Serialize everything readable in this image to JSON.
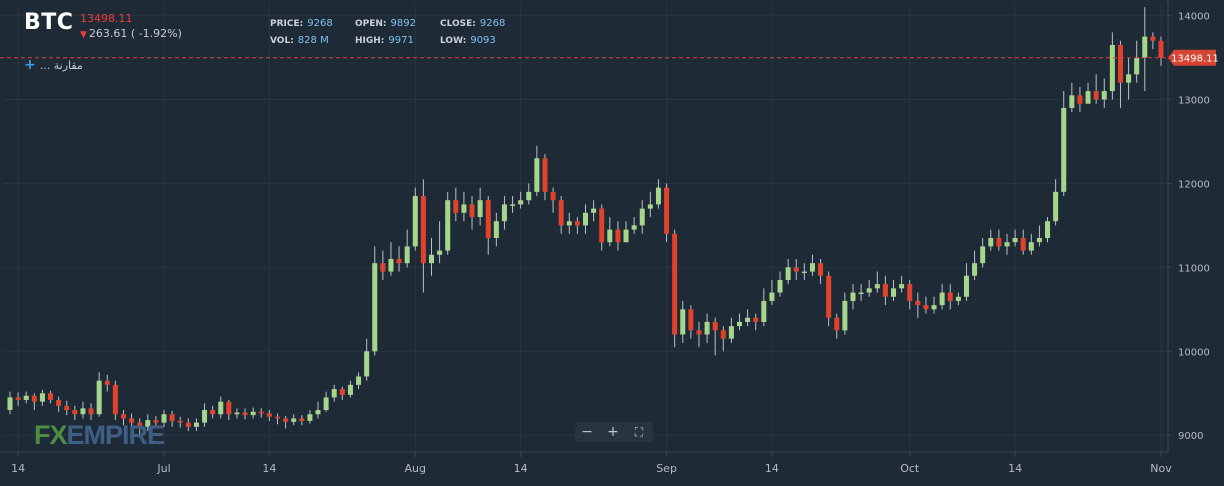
{
  "header": {
    "symbol": "BTC",
    "last_price": "13498.11",
    "change_text": "263.61 ( -1.92%)",
    "compare_label": "... مقارنة"
  },
  "stats": {
    "price_label": "PRICE:",
    "price": "9268",
    "open_label": "OPEN:",
    "open": "9892",
    "close_label": "CLOSE:",
    "close": "9268",
    "vol_label": "VOL:",
    "vol": "828 M",
    "high_label": "HIGH:",
    "high": "9971",
    "low_label": "LOW:",
    "low": "9093"
  },
  "logo": {
    "fx": "FX",
    "empire": "EMPIRE"
  },
  "zoom": {
    "minus": "−",
    "plus": "+",
    "fullscreen": "⛶"
  },
  "colors": {
    "background": "#1e2a35",
    "up": "#a6d68c",
    "down": "#e0422c",
    "grid": "#29353f",
    "axis_text": "#b4bcc4",
    "last_price_line": "#d64533"
  },
  "chart_data": {
    "type": "candlestick",
    "ylim": [
      8800,
      14150
    ],
    "yticks": [
      9000,
      10000,
      11000,
      12000,
      13000,
      14000
    ],
    "xticks": [
      {
        "label": "14",
        "index": 1
      },
      {
        "label": "Jul",
        "index": 19
      },
      {
        "label": "14",
        "index": 32
      },
      {
        "label": "Aug",
        "index": 50
      },
      {
        "label": "14",
        "index": 63
      },
      {
        "label": "Sep",
        "index": 81
      },
      {
        "label": "14",
        "index": 94
      },
      {
        "label": "Oct",
        "index": 111
      },
      {
        "label": "14",
        "index": 124
      },
      {
        "label": "Nov",
        "index": 142
      }
    ],
    "last_price": 13498.11,
    "last_price_label": "13498.11",
    "candles": [
      [
        9300,
        9450,
        9520,
        9250
      ],
      [
        9450,
        9420,
        9510,
        9350
      ],
      [
        9420,
        9470,
        9520,
        9380
      ],
      [
        9470,
        9400,
        9500,
        9300
      ],
      [
        9400,
        9500,
        9540,
        9350
      ],
      [
        9500,
        9420,
        9530,
        9380
      ],
      [
        9420,
        9350,
        9460,
        9280
      ],
      [
        9350,
        9300,
        9410,
        9240
      ],
      [
        9300,
        9250,
        9350,
        9180
      ],
      [
        9250,
        9320,
        9400,
        9200
      ],
      [
        9320,
        9250,
        9380,
        9180
      ],
      [
        9250,
        9650,
        9750,
        9220
      ],
      [
        9650,
        9600,
        9720,
        9520
      ],
      [
        9600,
        9250,
        9650,
        9180
      ],
      [
        9250,
        9200,
        9300,
        9120
      ],
      [
        9200,
        9150,
        9260,
        9080
      ],
      [
        9150,
        9100,
        9200,
        9000
      ],
      [
        9100,
        9180,
        9250,
        9050
      ],
      [
        9180,
        9150,
        9230,
        9080
      ],
      [
        9150,
        9250,
        9300,
        9100
      ],
      [
        9250,
        9170,
        9290,
        9100
      ],
      [
        9170,
        9150,
        9220,
        9090
      ],
      [
        9150,
        9100,
        9200,
        9050
      ],
      [
        9100,
        9150,
        9200,
        9050
      ],
      [
        9150,
        9300,
        9380,
        9100
      ],
      [
        9300,
        9250,
        9350,
        9200
      ],
      [
        9250,
        9400,
        9460,
        9200
      ],
      [
        9400,
        9250,
        9420,
        9180
      ],
      [
        9250,
        9270,
        9320,
        9200
      ],
      [
        9270,
        9240,
        9320,
        9190
      ],
      [
        9240,
        9280,
        9330,
        9200
      ],
      [
        9280,
        9260,
        9320,
        9210
      ],
      [
        9260,
        9220,
        9300,
        9170
      ],
      [
        9220,
        9200,
        9260,
        9130
      ],
      [
        9200,
        9160,
        9230,
        9080
      ],
      [
        9160,
        9200,
        9250,
        9120
      ],
      [
        9200,
        9170,
        9240,
        9120
      ],
      [
        9170,
        9250,
        9300,
        9140
      ],
      [
        9250,
        9300,
        9400,
        9200
      ],
      [
        9300,
        9450,
        9520,
        9280
      ],
      [
        9450,
        9550,
        9600,
        9400
      ],
      [
        9550,
        9480,
        9580,
        9420
      ],
      [
        9480,
        9600,
        9650,
        9450
      ],
      [
        9600,
        9700,
        9750,
        9550
      ],
      [
        9700,
        10000,
        10150,
        9650
      ],
      [
        10000,
        11050,
        11250,
        9950
      ],
      [
        11050,
        10950,
        11200,
        10850
      ],
      [
        10950,
        11100,
        11300,
        10900
      ],
      [
        11100,
        11050,
        11250,
        10950
      ],
      [
        11050,
        11250,
        11450,
        11000
      ],
      [
        11250,
        11850,
        11950,
        11200
      ],
      [
        11850,
        11050,
        12050,
        10700
      ],
      [
        11050,
        11150,
        11350,
        10900
      ],
      [
        11150,
        11200,
        11550,
        11050
      ],
      [
        11200,
        11800,
        11900,
        11150
      ],
      [
        11800,
        11650,
        11950,
        11550
      ],
      [
        11650,
        11750,
        11900,
        11550
      ],
      [
        11750,
        11600,
        11850,
        11450
      ],
      [
        11600,
        11800,
        11950,
        11500
      ],
      [
        11800,
        11350,
        11850,
        11150
      ],
      [
        11350,
        11550,
        11650,
        11250
      ],
      [
        11550,
        11750,
        11850,
        11450
      ],
      [
        11750,
        11750,
        11850,
        11650
      ],
      [
        11750,
        11800,
        11900,
        11700
      ],
      [
        11800,
        11900,
        12000,
        11750
      ],
      [
        11900,
        12300,
        12450,
        11850
      ],
      [
        12300,
        11900,
        12350,
        11800
      ],
      [
        11900,
        11800,
        11950,
        11650
      ],
      [
        11800,
        11500,
        11850,
        11400
      ],
      [
        11500,
        11550,
        11650,
        11400
      ],
      [
        11550,
        11500,
        11600,
        11400
      ],
      [
        11500,
        11650,
        11750,
        11400
      ],
      [
        11650,
        11700,
        11800,
        11550
      ],
      [
        11700,
        11300,
        11750,
        11200
      ],
      [
        11300,
        11450,
        11600,
        11250
      ],
      [
        11450,
        11300,
        11550,
        11200
      ],
      [
        11300,
        11450,
        11550,
        11300
      ],
      [
        11450,
        11500,
        11600,
        11400
      ],
      [
        11500,
        11700,
        11800,
        11400
      ],
      [
        11700,
        11750,
        11900,
        11600
      ],
      [
        11750,
        11950,
        12050,
        11700
      ],
      [
        11950,
        11400,
        12000,
        11300
      ],
      [
        11400,
        10200,
        11450,
        10050
      ],
      [
        10200,
        10500,
        10600,
        10100
      ],
      [
        10500,
        10250,
        10550,
        10150
      ],
      [
        10250,
        10200,
        10350,
        10050
      ],
      [
        10200,
        10350,
        10450,
        10100
      ],
      [
        10350,
        10250,
        10400,
        9950
      ],
      [
        10250,
        10150,
        10300,
        10000
      ],
      [
        10150,
        10300,
        10400,
        10100
      ],
      [
        10300,
        10350,
        10450,
        10250
      ],
      [
        10350,
        10400,
        10500,
        10300
      ],
      [
        10400,
        10350,
        10450,
        10250
      ],
      [
        10350,
        10600,
        10750,
        10300
      ],
      [
        10600,
        10700,
        10850,
        10550
      ],
      [
        10700,
        10850,
        10950,
        10650
      ],
      [
        10850,
        11000,
        11100,
        10800
      ],
      [
        11000,
        10950,
        11100,
        10850
      ],
      [
        10950,
        10950,
        11050,
        10850
      ],
      [
        10950,
        11050,
        11150,
        10900
      ],
      [
        11050,
        10900,
        11100,
        10800
      ],
      [
        10900,
        10400,
        10950,
        10300
      ],
      [
        10400,
        10250,
        10450,
        10150
      ],
      [
        10250,
        10600,
        10700,
        10200
      ],
      [
        10600,
        10700,
        10800,
        10500
      ],
      [
        10700,
        10700,
        10800,
        10600
      ],
      [
        10700,
        10750,
        10850,
        10650
      ],
      [
        10750,
        10800,
        10950,
        10700
      ],
      [
        10800,
        10650,
        10900,
        10550
      ],
      [
        10650,
        10750,
        10850,
        10600
      ],
      [
        10750,
        10800,
        10900,
        10700
      ],
      [
        10800,
        10600,
        10850,
        10500
      ],
      [
        10600,
        10550,
        10700,
        10400
      ],
      [
        10550,
        10500,
        10650,
        10450
      ],
      [
        10500,
        10550,
        10650,
        10450
      ],
      [
        10550,
        10700,
        10800,
        10500
      ],
      [
        10700,
        10600,
        10800,
        10500
      ],
      [
        10600,
        10650,
        10700,
        10550
      ],
      [
        10650,
        10900,
        11050,
        10600
      ],
      [
        10900,
        11050,
        11200,
        10850
      ],
      [
        11050,
        11250,
        11350,
        11000
      ],
      [
        11250,
        11350,
        11450,
        11200
      ],
      [
        11350,
        11250,
        11450,
        11200
      ],
      [
        11250,
        11300,
        11400,
        11150
      ],
      [
        11300,
        11350,
        11450,
        11250
      ],
      [
        11350,
        11200,
        11450,
        11150
      ],
      [
        11200,
        11300,
        11400,
        11150
      ],
      [
        11300,
        11350,
        11500,
        11250
      ],
      [
        11350,
        11550,
        11600,
        11300
      ],
      [
        11550,
        11900,
        12050,
        11500
      ],
      [
        11900,
        12900,
        13100,
        11850
      ],
      [
        12900,
        13050,
        13200,
        12850
      ],
      [
        13050,
        12950,
        13150,
        12850
      ],
      [
        12950,
        13100,
        13200,
        12950
      ],
      [
        13100,
        13000,
        13300,
        12950
      ],
      [
        13000,
        13100,
        13250,
        12900
      ],
      [
        13100,
        13650,
        13800,
        13000
      ],
      [
        13650,
        13200,
        13700,
        12900
      ],
      [
        13200,
        13300,
        13500,
        13000
      ],
      [
        13300,
        13500,
        13700,
        13200
      ],
      [
        13500,
        13750,
        14100,
        13100
      ],
      [
        13750,
        13700,
        13800,
        13600
      ],
      [
        13700,
        13500,
        13750,
        13400
      ]
    ]
  }
}
